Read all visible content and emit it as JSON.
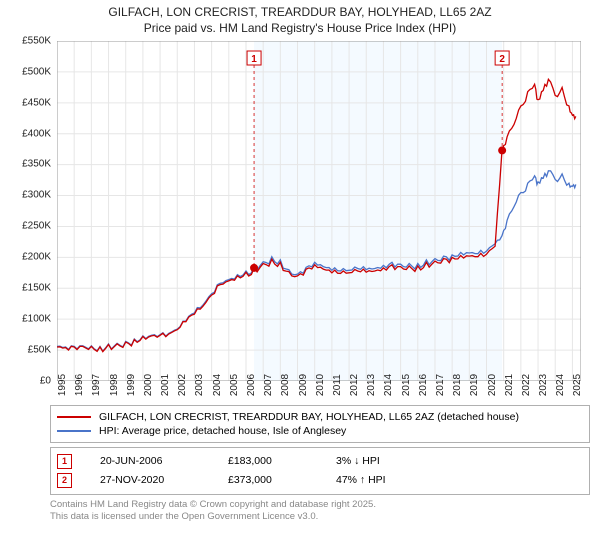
{
  "title_line1": "GILFACH, LON CRECRIST, TREARDDUR BAY, HOLYHEAD, LL65 2AZ",
  "title_line2": "Price paid vs. HM Land Registry's House Price Index (HPI)",
  "chart": {
    "type": "line",
    "background_color": "#ffffff",
    "plot_bg_color": "#ffffff",
    "shade_color": "#f4faff",
    "grid_color": "#e6e6e6",
    "axis_color": "#999999",
    "x_years": [
      1995,
      1996,
      1997,
      1998,
      1999,
      2000,
      2001,
      2002,
      2003,
      2004,
      2005,
      2006,
      2007,
      2008,
      2009,
      2010,
      2011,
      2012,
      2013,
      2014,
      2015,
      2016,
      2017,
      2018,
      2019,
      2020,
      2021,
      2022,
      2023,
      2024,
      2025
    ],
    "xlim": [
      1995,
      2025.5
    ],
    "ylim": [
      0,
      550000
    ],
    "ytick_step": 50000,
    "ytick_labels": [
      "£0",
      "£50K",
      "£100K",
      "£150K",
      "£200K",
      "£250K",
      "£300K",
      "£350K",
      "£400K",
      "£450K",
      "£500K",
      "£550K"
    ],
    "title_fontsize": 12,
    "label_fontsize": 10,
    "line_width": 1.3,
    "series": [
      {
        "name": "property",
        "color": "#cc0000",
        "legend": "GILFACH, LON CRECRIST, TREARDDUR BAY, HOLYHEAD, LL65 2AZ (detached house)",
        "data": [
          [
            1995.0,
            55000
          ],
          [
            1995.5,
            54000
          ],
          [
            1996.0,
            55000
          ],
          [
            1996.5,
            56000
          ],
          [
            1997.0,
            56000
          ],
          [
            1997.5,
            55000
          ],
          [
            1998.0,
            59000
          ],
          [
            1998.5,
            60000
          ],
          [
            1999.0,
            63000
          ],
          [
            1999.5,
            67000
          ],
          [
            2000.0,
            72000
          ],
          [
            2000.5,
            73000
          ],
          [
            2001.0,
            74000
          ],
          [
            2001.5,
            76000
          ],
          [
            2002.0,
            83000
          ],
          [
            2002.5,
            96000
          ],
          [
            2003.0,
            108000
          ],
          [
            2003.5,
            121000
          ],
          [
            2004.0,
            139000
          ],
          [
            2004.5,
            156000
          ],
          [
            2005.0,
            162000
          ],
          [
            2005.5,
            170000
          ],
          [
            2006.0,
            176000
          ],
          [
            2006.47,
            183000
          ],
          [
            2007.0,
            190000
          ],
          [
            2007.5,
            197000
          ],
          [
            2008.0,
            192000
          ],
          [
            2008.5,
            177000
          ],
          [
            2009.0,
            170000
          ],
          [
            2009.5,
            181000
          ],
          [
            2010.0,
            188000
          ],
          [
            2010.5,
            181000
          ],
          [
            2011.0,
            175000
          ],
          [
            2011.5,
            174000
          ],
          [
            2012.0,
            175000
          ],
          [
            2012.5,
            178000
          ],
          [
            2013.0,
            176000
          ],
          [
            2013.5,
            178000
          ],
          [
            2014.0,
            183000
          ],
          [
            2014.5,
            188000
          ],
          [
            2015.0,
            185000
          ],
          [
            2015.5,
            186000
          ],
          [
            2016.0,
            186000
          ],
          [
            2016.5,
            192000
          ],
          [
            2017.0,
            194000
          ],
          [
            2017.5,
            198000
          ],
          [
            2018.0,
            200000
          ],
          [
            2018.5,
            203000
          ],
          [
            2019.0,
            202000
          ],
          [
            2019.5,
            201000
          ],
          [
            2020.0,
            205000
          ],
          [
            2020.5,
            218000
          ],
          [
            2020.9,
            373000
          ],
          [
            2021.2,
            395000
          ],
          [
            2021.6,
            415000
          ],
          [
            2022.0,
            445000
          ],
          [
            2022.4,
            468000
          ],
          [
            2022.8,
            480000
          ],
          [
            2023.0,
            455000
          ],
          [
            2023.3,
            470000
          ],
          [
            2023.6,
            488000
          ],
          [
            2024.0,
            462000
          ],
          [
            2024.4,
            475000
          ],
          [
            2024.8,
            445000
          ],
          [
            2025.0,
            430000
          ],
          [
            2025.2,
            428000
          ]
        ]
      },
      {
        "name": "hpi",
        "color": "#4a74c9",
        "legend": "HPI: Average price, detached house, Isle of Anglesey",
        "data": [
          [
            1995.0,
            56000
          ],
          [
            1995.5,
            55000
          ],
          [
            1996.0,
            56000
          ],
          [
            1996.5,
            57000
          ],
          [
            1997.0,
            57000
          ],
          [
            1997.5,
            56000
          ],
          [
            1998.0,
            60000
          ],
          [
            1998.5,
            61000
          ],
          [
            1999.0,
            64000
          ],
          [
            1999.5,
            68000
          ],
          [
            2000.0,
            73000
          ],
          [
            2000.5,
            74000
          ],
          [
            2001.0,
            75000
          ],
          [
            2001.5,
            77000
          ],
          [
            2002.0,
            84000
          ],
          [
            2002.5,
            97000
          ],
          [
            2003.0,
            110000
          ],
          [
            2003.5,
            123000
          ],
          [
            2004.0,
            141000
          ],
          [
            2004.5,
            158000
          ],
          [
            2005.0,
            164000
          ],
          [
            2005.5,
            172000
          ],
          [
            2006.0,
            178000
          ],
          [
            2006.47,
            186000
          ],
          [
            2007.0,
            193000
          ],
          [
            2007.5,
            201000
          ],
          [
            2008.0,
            196000
          ],
          [
            2008.5,
            180000
          ],
          [
            2009.0,
            173000
          ],
          [
            2009.5,
            184000
          ],
          [
            2010.0,
            192000
          ],
          [
            2010.5,
            185000
          ],
          [
            2011.0,
            179000
          ],
          [
            2011.5,
            178000
          ],
          [
            2012.0,
            179000
          ],
          [
            2012.5,
            182000
          ],
          [
            2013.0,
            180000
          ],
          [
            2013.5,
            182000
          ],
          [
            2014.0,
            187000
          ],
          [
            2014.5,
            192000
          ],
          [
            2015.0,
            189000
          ],
          [
            2015.5,
            190000
          ],
          [
            2016.0,
            190000
          ],
          [
            2016.5,
            196000
          ],
          [
            2017.0,
            198000
          ],
          [
            2017.5,
            202000
          ],
          [
            2018.0,
            204000
          ],
          [
            2018.5,
            208000
          ],
          [
            2019.0,
            207000
          ],
          [
            2019.5,
            206000
          ],
          [
            2020.0,
            210000
          ],
          [
            2020.5,
            222000
          ],
          [
            2020.9,
            235000
          ],
          [
            2021.2,
            260000
          ],
          [
            2021.6,
            282000
          ],
          [
            2022.0,
            305000
          ],
          [
            2022.4,
            320000
          ],
          [
            2022.8,
            332000
          ],
          [
            2023.0,
            322000
          ],
          [
            2023.3,
            328000
          ],
          [
            2023.6,
            340000
          ],
          [
            2024.0,
            326000
          ],
          [
            2024.4,
            335000
          ],
          [
            2024.8,
            320000
          ],
          [
            2025.0,
            315000
          ],
          [
            2025.2,
            318000
          ]
        ]
      }
    ],
    "markers": [
      {
        "n": "1",
        "x_year": 2006.47,
        "y": 183000,
        "label_date": "20-JUN-2006",
        "label_price": "£183,000",
        "label_delta": "3%  ↓ HPI"
      },
      {
        "n": "2",
        "x_year": 2020.91,
        "y": 373000,
        "label_date": "27-NOV-2020",
        "label_price": "£373,000",
        "label_delta": "47%  ↑ HPI"
      }
    ],
    "marker_color": "#cc0000",
    "marker_label_y_offset": 24
  },
  "footer_line1": "Contains HM Land Registry data © Crown copyright and database right 2025.",
  "footer_line2": "This data is licensed under the Open Government Licence v3.0."
}
